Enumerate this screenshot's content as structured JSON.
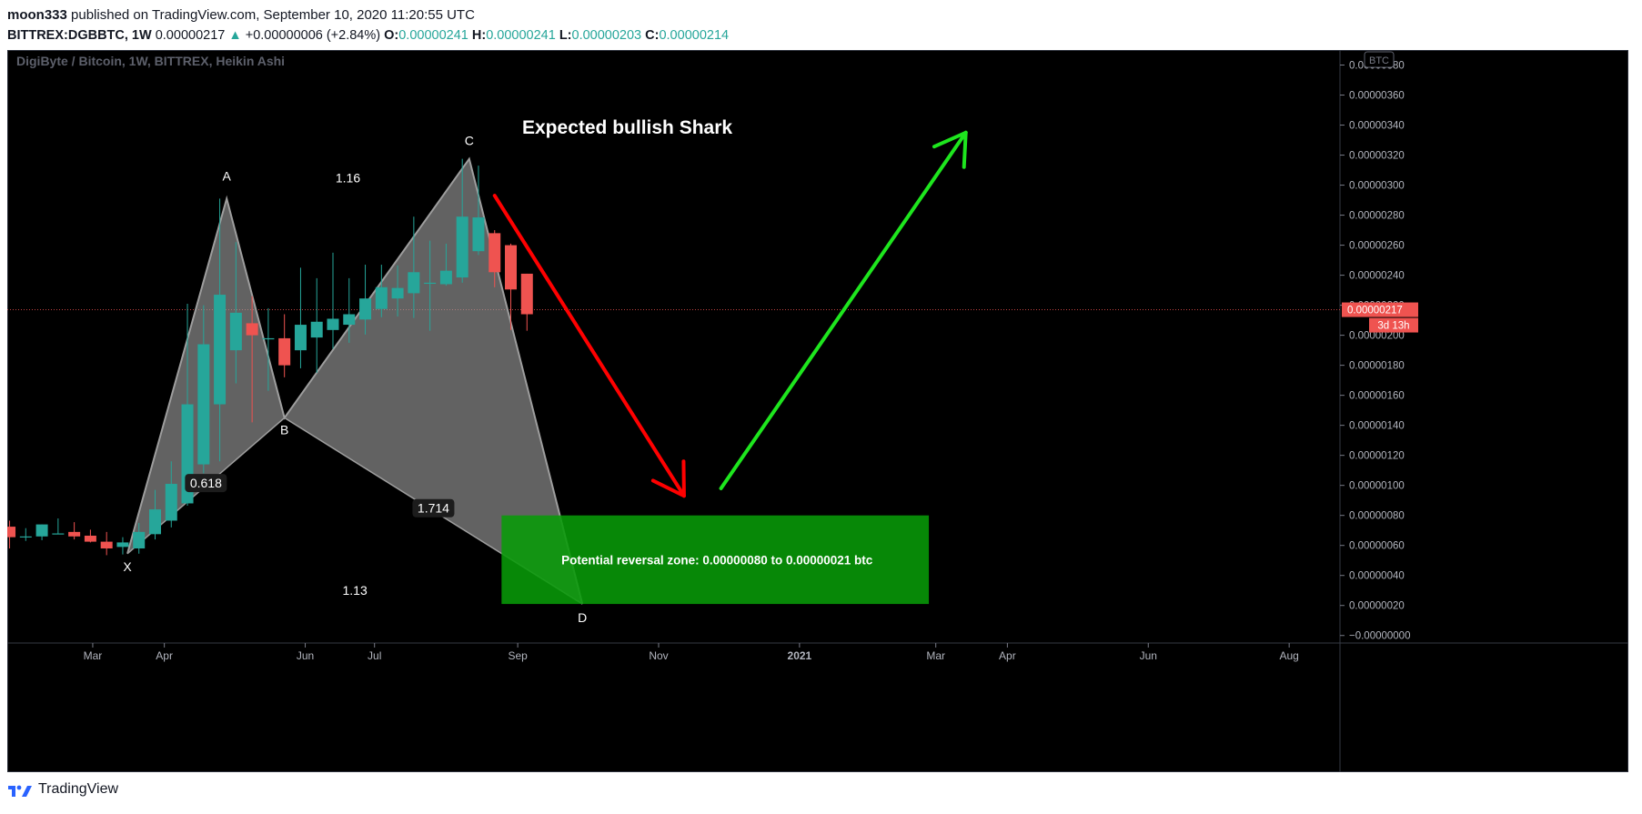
{
  "header": {
    "author": "moon333",
    "published": "published on TradingView.com, September 10, 2020 11:20:55 UTC",
    "symbol": "BITTREX:DGBBTC, 1W",
    "last": "0.00000217",
    "change": "+0.00000006 (+2.84%)",
    "o_label": "O:",
    "o": "0.00000241",
    "h_label": "H:",
    "h": "0.00000241",
    "l_label": "L:",
    "l": "0.00000203",
    "c_label": "C:",
    "c": "0.00000214"
  },
  "footer": {
    "brand": "TradingView"
  },
  "chart_data": {
    "type": "candlestick",
    "title": "DigiByte / Bitcoin, 1W, BITTREX, Heikin Ashi",
    "currency_badge": "BTC",
    "y_ticks": [
      "0.00000380",
      "0.00000360",
      "0.00000340",
      "0.00000320",
      "0.00000300",
      "0.00000280",
      "0.00000260",
      "0.00000240",
      "0.00000220",
      "0.00000200",
      "0.00000180",
      "0.00000160",
      "0.00000140",
      "0.00000120",
      "0.00000100",
      "0.00000080",
      "0.00000060",
      "0.00000040",
      "0.00000020",
      "−0.00000000"
    ],
    "ylim": [
      -5e-08,
      3.9e-06
    ],
    "x_ticks": [
      {
        "label": "Mar",
        "date": "2020-03-01"
      },
      {
        "label": "Apr",
        "date": "2020-04-01"
      },
      {
        "label": "Jun",
        "date": "2020-06-01"
      },
      {
        "label": "Jul",
        "date": "2020-07-01"
      },
      {
        "label": "Sep",
        "date": "2020-09-01"
      },
      {
        "label": "Nov",
        "date": "2020-11-01"
      },
      {
        "label": "2021",
        "date": "2021-01-01",
        "bold": true
      },
      {
        "label": "Mar",
        "date": "2021-03-01"
      },
      {
        "label": "Apr",
        "date": "2021-04-01"
      },
      {
        "label": "Jun",
        "date": "2021-06-01"
      },
      {
        "label": "Aug",
        "date": "2021-08-01"
      }
    ],
    "xlim": [
      "2020-01-24",
      "2021-08-23"
    ],
    "current_price": {
      "value": "0.00000217",
      "countdown": "3d 13h"
    },
    "colors": {
      "up": "#26a69a",
      "down": "#ef5350",
      "pattern": "#9e9e9e",
      "zone": "#089b08",
      "bear_arrow": "#ff0000",
      "bull_arrow": "#1ee61e"
    },
    "candles": [
      {
        "date": "2020-01-25",
        "open": 7.25e-07,
        "high": 7.65e-07,
        "low": 5.8e-07,
        "close": 6.55e-07
      },
      {
        "date": "2020-02-01",
        "open": 6.6e-07,
        "high": 7.15e-07,
        "low": 6.3e-07,
        "close": 6.6e-07
      },
      {
        "date": "2020-02-08",
        "open": 6.6e-07,
        "high": 7.4e-07,
        "low": 6.35e-07,
        "close": 7.4e-07
      },
      {
        "date": "2020-02-15",
        "open": 6.8e-07,
        "high": 7.8e-07,
        "low": 6.8e-07,
        "close": 6.8e-07
      },
      {
        "date": "2020-02-22",
        "open": 6.9e-07,
        "high": 7.55e-07,
        "low": 6.4e-07,
        "close": 6.6e-07
      },
      {
        "date": "2020-02-29",
        "open": 6.65e-07,
        "high": 7.05e-07,
        "low": 6.2e-07,
        "close": 6.25e-07
      },
      {
        "date": "2020-03-07",
        "open": 6.25e-07,
        "high": 6.9e-07,
        "low": 5.35e-07,
        "close": 5.8e-07
      },
      {
        "date": "2020-03-14",
        "open": 5.9e-07,
        "high": 6.55e-07,
        "low": 5.4e-07,
        "close": 6.2e-07
      },
      {
        "date": "2020-03-21",
        "open": 5.8e-07,
        "high": 7.5e-07,
        "low": 5.45e-07,
        "close": 6.9e-07
      },
      {
        "date": "2020-03-28",
        "open": 6.75e-07,
        "high": 9.7e-07,
        "low": 6.4e-07,
        "close": 8.4e-07
      },
      {
        "date": "2020-04-04",
        "open": 7.65e-07,
        "high": 1.16e-06,
        "low": 7.2e-07,
        "close": 1.01e-06
      },
      {
        "date": "2020-04-11",
        "open": 8.8e-07,
        "high": 2.21e-06,
        "low": 8.65e-07,
        "close": 1.54e-06
      },
      {
        "date": "2020-04-18",
        "open": 1.14e-06,
        "high": 2.2e-06,
        "low": 1.08e-06,
        "close": 1.94e-06
      },
      {
        "date": "2020-04-25",
        "open": 1.54e-06,
        "high": 2.91e-06,
        "low": 1.16e-06,
        "close": 2.27e-06
      },
      {
        "date": "2020-05-02",
        "open": 1.9e-06,
        "high": 2.62e-06,
        "low": 1.68e-06,
        "close": 2.15e-06
      },
      {
        "date": "2020-05-09",
        "open": 2.08e-06,
        "high": 2.26e-06,
        "low": 1.42e-06,
        "close": 2e-06
      },
      {
        "date": "2020-05-16",
        "open": 1.98e-06,
        "high": 2.18e-06,
        "low": 1.63e-06,
        "close": 1.98e-06
      },
      {
        "date": "2020-05-23",
        "open": 1.98e-06,
        "high": 2.14e-06,
        "low": 1.72e-06,
        "close": 1.8e-06
      },
      {
        "date": "2020-05-30",
        "open": 1.9e-06,
        "high": 2.45e-06,
        "low": 1.78e-06,
        "close": 2.07e-06
      },
      {
        "date": "2020-06-06",
        "open": 1.985e-06,
        "high": 2.38e-06,
        "low": 1.75e-06,
        "close": 2.09e-06
      },
      {
        "date": "2020-06-13",
        "open": 2.035e-06,
        "high": 2.55e-06,
        "low": 1.91e-06,
        "close": 2.11e-06
      },
      {
        "date": "2020-06-20",
        "open": 2.07e-06,
        "high": 2.38e-06,
        "low": 1.95e-06,
        "close": 2.14e-06
      },
      {
        "date": "2020-06-27",
        "open": 2.105e-06,
        "high": 2.47e-06,
        "low": 2.005e-06,
        "close": 2.245e-06
      },
      {
        "date": "2020-07-04",
        "open": 2.175e-06,
        "high": 2.47e-06,
        "low": 2.12e-06,
        "close": 2.32e-06
      },
      {
        "date": "2020-07-11",
        "open": 2.245e-06,
        "high": 2.465e-06,
        "low": 2.125e-06,
        "close": 2.315e-06
      },
      {
        "date": "2020-07-18",
        "open": 2.28e-06,
        "high": 2.79e-06,
        "low": 2.115e-06,
        "close": 2.42e-06
      },
      {
        "date": "2020-07-25",
        "open": 2.35e-06,
        "high": 2.63e-06,
        "low": 2.03e-06,
        "close": 2.35e-06
      },
      {
        "date": "2020-08-01",
        "open": 2.34e-06,
        "high": 2.61e-06,
        "low": 2.33e-06,
        "close": 2.43e-06
      },
      {
        "date": "2020-08-08",
        "open": 2.385e-06,
        "high": 3.175e-06,
        "low": 2.35e-06,
        "close": 2.79e-06
      },
      {
        "date": "2020-08-15",
        "open": 2.56e-06,
        "high": 3.13e-06,
        "low": 2.535e-06,
        "close": 2.785e-06
      },
      {
        "date": "2020-08-22",
        "open": 2.68e-06,
        "high": 2.7e-06,
        "low": 2.32e-06,
        "close": 2.42e-06
      },
      {
        "date": "2020-08-29",
        "open": 2.6e-06,
        "high": 2.61e-06,
        "low": 2.035e-06,
        "close": 2.305e-06
      },
      {
        "date": "2020-09-05",
        "open": 2.41e-06,
        "high": 2.41e-06,
        "low": 2.03e-06,
        "close": 2.14e-06
      }
    ],
    "pattern": {
      "name": "Expected bullish Shark",
      "points": [
        {
          "label": "X",
          "date": "2020-03-16",
          "value": 5.45e-07
        },
        {
          "label": "A",
          "date": "2020-04-28",
          "value": 2.91e-06
        },
        {
          "label": "B",
          "date": "2020-05-23",
          "value": 1.45e-06
        },
        {
          "label": "C",
          "date": "2020-08-11",
          "value": 3.175e-06
        },
        {
          "label": "D",
          "date": "2020-09-29",
          "value": 2.1e-07
        }
      ],
      "ratios": [
        "0.618",
        "1.16",
        "1.714",
        "1.13"
      ]
    },
    "reversal_zone": {
      "label": "Potential reversal zone: 0.00000080 to 0.00000021 btc",
      "from_date": "2020-08-25",
      "to_date": "2021-02-26",
      "low": 2.1e-07,
      "high": 8e-07
    },
    "arrows": [
      {
        "name": "bearish",
        "from_date": "2020-08-22",
        "from_value": 2.93e-06,
        "to_date": "2020-11-12",
        "to_value": 9.3e-07
      },
      {
        "name": "bullish",
        "from_date": "2020-11-28",
        "from_value": 9.8e-07,
        "to_date": "2021-03-14",
        "to_value": 3.35e-06
      }
    ]
  }
}
